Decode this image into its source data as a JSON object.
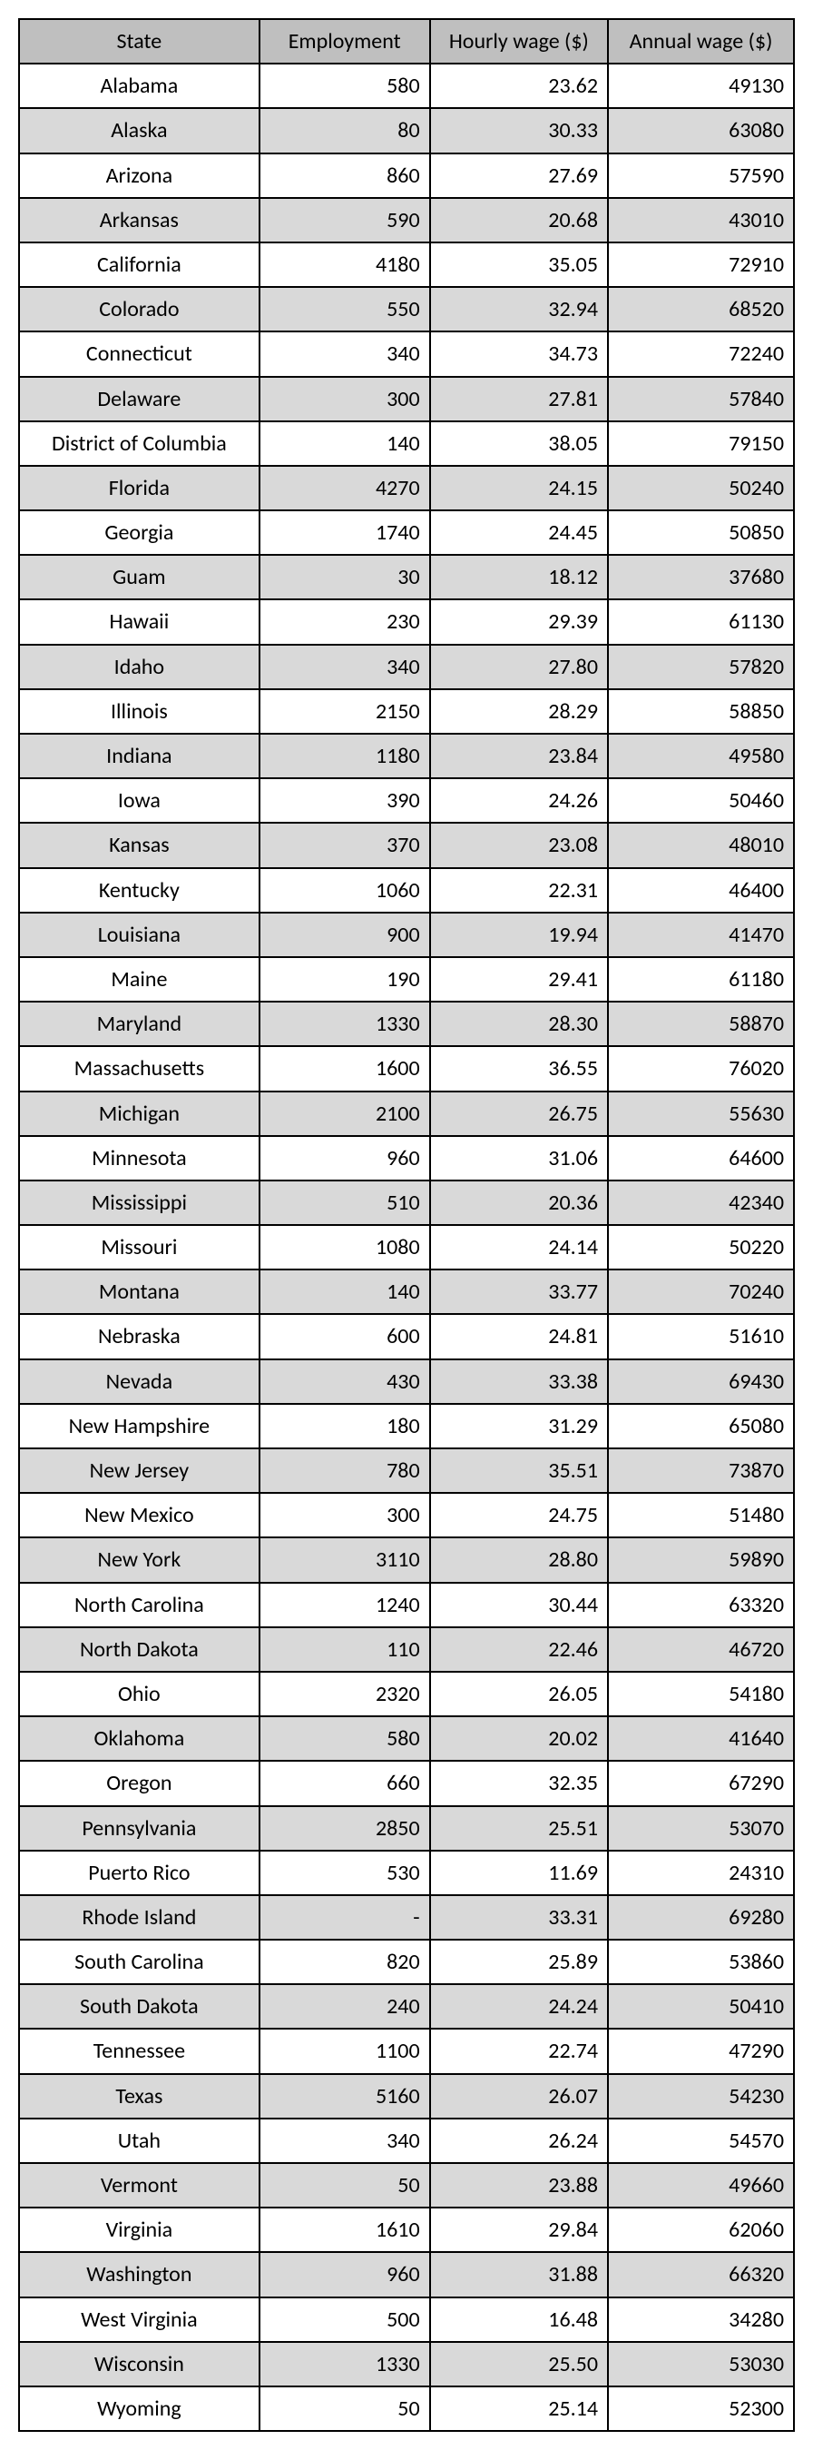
{
  "table": {
    "columns": [
      {
        "label": "State",
        "align": "center",
        "width": "31%"
      },
      {
        "label": "Employment",
        "align": "right",
        "width": "22%"
      },
      {
        "label": "Hourly wage ($)",
        "align": "right",
        "width": "23%"
      },
      {
        "label": "Annual wage ($)",
        "align": "right",
        "width": "24%"
      }
    ],
    "header_bg": "#bfbfbf",
    "row_shaded_bg": "#d9d9d9",
    "row_unshaded_bg": "#ffffff",
    "border_color": "#000000",
    "font_family": "Calibri, Arial, sans-serif",
    "font_size": 24,
    "rows": [
      {
        "state": "Alabama",
        "employment": "580",
        "hourly": "23.62",
        "annual": "49130",
        "shaded": false
      },
      {
        "state": "Alaska",
        "employment": "80",
        "hourly": "30.33",
        "annual": "63080",
        "shaded": true
      },
      {
        "state": "Arizona",
        "employment": "860",
        "hourly": "27.69",
        "annual": "57590",
        "shaded": false
      },
      {
        "state": "Arkansas",
        "employment": "590",
        "hourly": "20.68",
        "annual": "43010",
        "shaded": true
      },
      {
        "state": "California",
        "employment": "4180",
        "hourly": "35.05",
        "annual": "72910",
        "shaded": false
      },
      {
        "state": "Colorado",
        "employment": "550",
        "hourly": "32.94",
        "annual": "68520",
        "shaded": true
      },
      {
        "state": "Connecticut",
        "employment": "340",
        "hourly": "34.73",
        "annual": "72240",
        "shaded": false
      },
      {
        "state": "Delaware",
        "employment": "300",
        "hourly": "27.81",
        "annual": "57840",
        "shaded": true
      },
      {
        "state": "District of Columbia",
        "employment": "140",
        "hourly": "38.05",
        "annual": "79150",
        "shaded": false
      },
      {
        "state": "Florida",
        "employment": "4270",
        "hourly": "24.15",
        "annual": "50240",
        "shaded": true
      },
      {
        "state": "Georgia",
        "employment": "1740",
        "hourly": "24.45",
        "annual": "50850",
        "shaded": false
      },
      {
        "state": "Guam",
        "employment": "30",
        "hourly": "18.12",
        "annual": "37680",
        "shaded": true
      },
      {
        "state": "Hawaii",
        "employment": "230",
        "hourly": "29.39",
        "annual": "61130",
        "shaded": false
      },
      {
        "state": "Idaho",
        "employment": "340",
        "hourly": "27.80",
        "annual": "57820",
        "shaded": true
      },
      {
        "state": "Illinois",
        "employment": "2150",
        "hourly": "28.29",
        "annual": "58850",
        "shaded": false
      },
      {
        "state": "Indiana",
        "employment": "1180",
        "hourly": "23.84",
        "annual": "49580",
        "shaded": true
      },
      {
        "state": "Iowa",
        "employment": "390",
        "hourly": "24.26",
        "annual": "50460",
        "shaded": false
      },
      {
        "state": "Kansas",
        "employment": "370",
        "hourly": "23.08",
        "annual": "48010",
        "shaded": true
      },
      {
        "state": "Kentucky",
        "employment": "1060",
        "hourly": "22.31",
        "annual": "46400",
        "shaded": false
      },
      {
        "state": "Louisiana",
        "employment": "900",
        "hourly": "19.94",
        "annual": "41470",
        "shaded": true
      },
      {
        "state": "Maine",
        "employment": "190",
        "hourly": "29.41",
        "annual": "61180",
        "shaded": false
      },
      {
        "state": "Maryland",
        "employment": "1330",
        "hourly": "28.30",
        "annual": "58870",
        "shaded": true
      },
      {
        "state": "Massachusetts",
        "employment": "1600",
        "hourly": "36.55",
        "annual": "76020",
        "shaded": false
      },
      {
        "state": "Michigan",
        "employment": "2100",
        "hourly": "26.75",
        "annual": "55630",
        "shaded": true
      },
      {
        "state": "Minnesota",
        "employment": "960",
        "hourly": "31.06",
        "annual": "64600",
        "shaded": false
      },
      {
        "state": "Mississippi",
        "employment": "510",
        "hourly": "20.36",
        "annual": "42340",
        "shaded": true
      },
      {
        "state": "Missouri",
        "employment": "1080",
        "hourly": "24.14",
        "annual": "50220",
        "shaded": false
      },
      {
        "state": "Montana",
        "employment": "140",
        "hourly": "33.77",
        "annual": "70240",
        "shaded": true
      },
      {
        "state": "Nebraska",
        "employment": "600",
        "hourly": "24.81",
        "annual": "51610",
        "shaded": false
      },
      {
        "state": "Nevada",
        "employment": "430",
        "hourly": "33.38",
        "annual": "69430",
        "shaded": true
      },
      {
        "state": "New Hampshire",
        "employment": "180",
        "hourly": "31.29",
        "annual": "65080",
        "shaded": false
      },
      {
        "state": "New Jersey",
        "employment": "780",
        "hourly": "35.51",
        "annual": "73870",
        "shaded": true
      },
      {
        "state": "New Mexico",
        "employment": "300",
        "hourly": "24.75",
        "annual": "51480",
        "shaded": false
      },
      {
        "state": "New York",
        "employment": "3110",
        "hourly": "28.80",
        "annual": "59890",
        "shaded": true
      },
      {
        "state": "North Carolina",
        "employment": "1240",
        "hourly": "30.44",
        "annual": "63320",
        "shaded": false
      },
      {
        "state": "North Dakota",
        "employment": "110",
        "hourly": "22.46",
        "annual": "46720",
        "shaded": true
      },
      {
        "state": "Ohio",
        "employment": "2320",
        "hourly": "26.05",
        "annual": "54180",
        "shaded": false
      },
      {
        "state": "Oklahoma",
        "employment": "580",
        "hourly": "20.02",
        "annual": "41640",
        "shaded": true
      },
      {
        "state": "Oregon",
        "employment": "660",
        "hourly": "32.35",
        "annual": "67290",
        "shaded": false
      },
      {
        "state": "Pennsylvania",
        "employment": "2850",
        "hourly": "25.51",
        "annual": "53070",
        "shaded": true
      },
      {
        "state": "Puerto Rico",
        "employment": "530",
        "hourly": "11.69",
        "annual": "24310",
        "shaded": false
      },
      {
        "state": "Rhode Island",
        "employment": "-",
        "hourly": "33.31",
        "annual": "69280",
        "shaded": true
      },
      {
        "state": "South Carolina",
        "employment": "820",
        "hourly": "25.89",
        "annual": "53860",
        "shaded": false
      },
      {
        "state": "South Dakota",
        "employment": "240",
        "hourly": "24.24",
        "annual": "50410",
        "shaded": true
      },
      {
        "state": "Tennessee",
        "employment": "1100",
        "hourly": "22.74",
        "annual": "47290",
        "shaded": false
      },
      {
        "state": "Texas",
        "employment": "5160",
        "hourly": "26.07",
        "annual": "54230",
        "shaded": true
      },
      {
        "state": "Utah",
        "employment": "340",
        "hourly": "26.24",
        "annual": "54570",
        "shaded": false
      },
      {
        "state": "Vermont",
        "employment": "50",
        "hourly": "23.88",
        "annual": "49660",
        "shaded": true
      },
      {
        "state": "Virginia",
        "employment": "1610",
        "hourly": "29.84",
        "annual": "62060",
        "shaded": false
      },
      {
        "state": "Washington",
        "employment": "960",
        "hourly": "31.88",
        "annual": "66320",
        "shaded": true
      },
      {
        "state": "West Virginia",
        "employment": "500",
        "hourly": "16.48",
        "annual": "34280",
        "shaded": false
      },
      {
        "state": "Wisconsin",
        "employment": "1330",
        "hourly": "25.50",
        "annual": "53030",
        "shaded": true
      },
      {
        "state": "Wyoming",
        "employment": "50",
        "hourly": "25.14",
        "annual": "52300",
        "shaded": false
      }
    ]
  }
}
